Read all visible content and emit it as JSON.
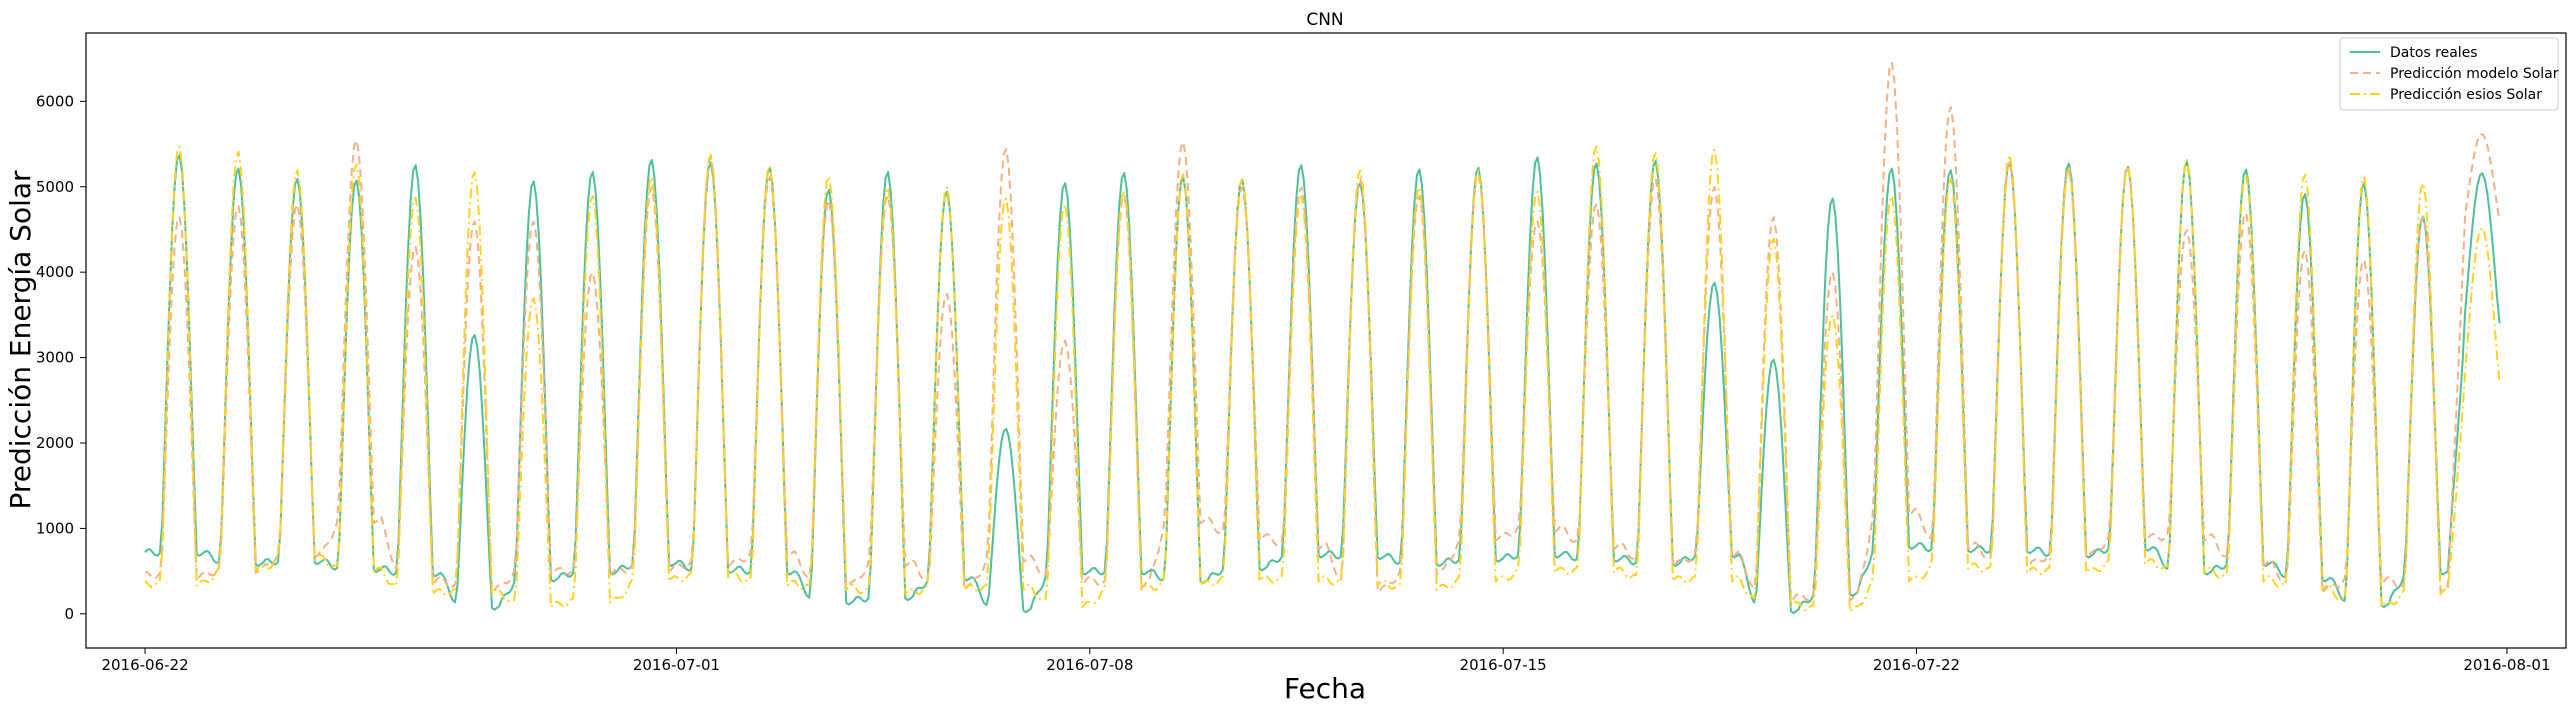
{
  "chart_data": {
    "type": "line",
    "title": "CNN",
    "xlabel": "Fecha",
    "ylabel": "Predicción Energía Solar",
    "x_start": "2016-06-22",
    "x_end": "2016-07-31",
    "xlim": [
      "2016-06-21",
      "2016-08-02"
    ],
    "ylim": [
      -400,
      6800
    ],
    "x_ticks": [
      "2016-06-22",
      "2016-07-01",
      "2016-07-08",
      "2016-07-15",
      "2016-07-22",
      "2016-08-01"
    ],
    "y_ticks": [
      0,
      1000,
      2000,
      3000,
      4000,
      5000,
      6000
    ],
    "legend_position": "top-right",
    "grid": false,
    "series": [
      {
        "name": "Datos reales",
        "color": "#4dbf9c",
        "style": "solid",
        "daily_peaks": [
          5380,
          5220,
          5100,
          5080,
          5260,
          3270,
          5070,
          5180,
          5320,
          5290,
          5230,
          4970,
          5180,
          4950,
          2170,
          5050,
          5170,
          5120,
          5090,
          5260,
          5050,
          5210,
          5230,
          5350,
          5280,
          5310,
          3880,
          2980,
          4870,
          5220,
          5200,
          5290,
          5280,
          5240,
          5300,
          5210,
          4920,
          5050,
          4660,
          5160
        ],
        "night_baseline": [
          720,
          600,
          620,
          530,
          480,
          90,
          420,
          500,
          600,
          520,
          500,
          150,
          200,
          430,
          60,
          500,
          500,
          400,
          550,
          700,
          680,
          600,
          650,
          700,
          650,
          600,
          700,
          50,
          250,
          800,
          760,
          750,
          700,
          780,
          500,
          600,
          420,
          120,
          500,
          3400
        ]
      },
      {
        "name": "Predicción modelo Solar",
        "color": "#f4b183",
        "style": "dashed",
        "daily_peaks": [
          4650,
          4780,
          4800,
          5550,
          4300,
          4600,
          4600,
          4000,
          5000,
          5350,
          5120,
          4850,
          4900,
          3750,
          5450,
          3200,
          4900,
          5530,
          5000,
          5000,
          5100,
          4900,
          5150,
          4600,
          4800,
          5100,
          5000,
          4650,
          4000,
          6460,
          5940,
          5300,
          5220,
          5250,
          4500,
          4700,
          4260,
          4150,
          4650,
          5620
        ],
        "night_baseline": [
          450,
          520,
          700,
          1100,
          400,
          300,
          500,
          500,
          540,
          600,
          700,
          350,
          600,
          330,
          650,
          400,
          350,
          1100,
          900,
          800,
          300,
          500,
          900,
          1000,
          800,
          600,
          700,
          200,
          200,
          1200,
          800,
          600,
          700,
          900,
          900,
          600,
          300,
          400,
          300,
          4600
        ]
      },
      {
        "name": "Predicción esios Solar",
        "color": "#ffd21f",
        "style": "dashdot",
        "daily_peaks": [
          5480,
          5420,
          5200,
          5270,
          4880,
          5180,
          3700,
          4900,
          5120,
          5380,
          5250,
          5130,
          5000,
          5000,
          4870,
          4800,
          4950,
          5150,
          5100,
          4900,
          5200,
          5000,
          5200,
          4950,
          5480,
          5400,
          5440,
          4400,
          3500,
          4900,
          5100,
          5380,
          5220,
          5250,
          5320,
          5150,
          5150,
          5120,
          5050,
          4520
        ],
        "night_baseline": [
          350,
          520,
          650,
          500,
          250,
          250,
          100,
          150,
          400,
          450,
          350,
          300,
          250,
          300,
          300,
          100,
          300,
          350,
          400,
          400,
          350,
          300,
          400,
          500,
          500,
          400,
          400,
          100,
          50,
          400,
          550,
          500,
          500,
          600,
          500,
          400,
          300,
          100,
          250,
          2700
        ]
      }
    ]
  }
}
